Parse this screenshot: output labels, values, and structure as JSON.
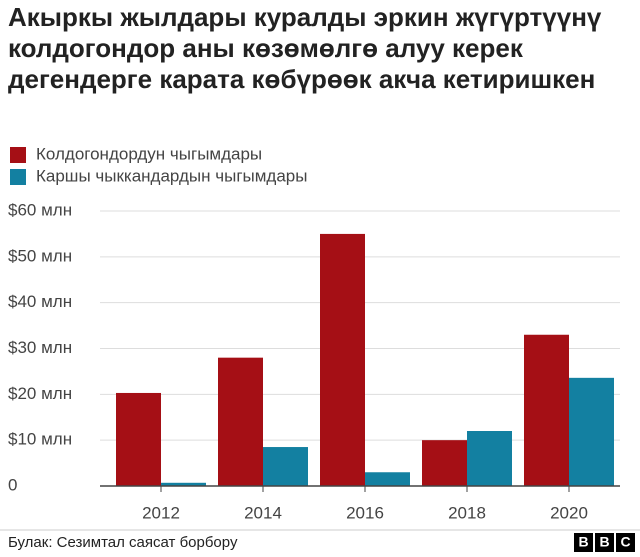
{
  "chart_data": {
    "type": "bar",
    "title": "Акыркы жылдары куралды эркин жүгүртүүнү колдогондор аны көзөмөлгө алуу керек дегендерге карата көбүрөөк акча кетиришкен",
    "categories": [
      "2012",
      "2014",
      "2016",
      "2018",
      "2020"
    ],
    "series": [
      {
        "name": "Колдогондордун чыгымдары",
        "color": "#a50f15",
        "values": [
          20.3,
          28,
          55,
          10,
          33
        ]
      },
      {
        "name": "Каршы чыккандардын чыгымдары",
        "color": "#1380a1",
        "values": [
          0.7,
          8.5,
          3,
          12,
          23.6
        ]
      }
    ],
    "ylim": [
      0,
      60
    ],
    "yticks": [
      0,
      {
        "value": 10,
        "label": "$10 млн"
      },
      {
        "value": 20,
        "label": "$20 млн"
      },
      {
        "value": 30,
        "label": "$30 млн"
      },
      {
        "value": 40,
        "label": "$40 млн"
      },
      {
        "value": 50,
        "label": "$50 млн"
      },
      {
        "value": 60,
        "label": "$60 млн"
      }
    ],
    "grid": true,
    "source": "Булак: Сезимтал саясат борбору",
    "logo": [
      "B",
      "B",
      "C"
    ]
  }
}
